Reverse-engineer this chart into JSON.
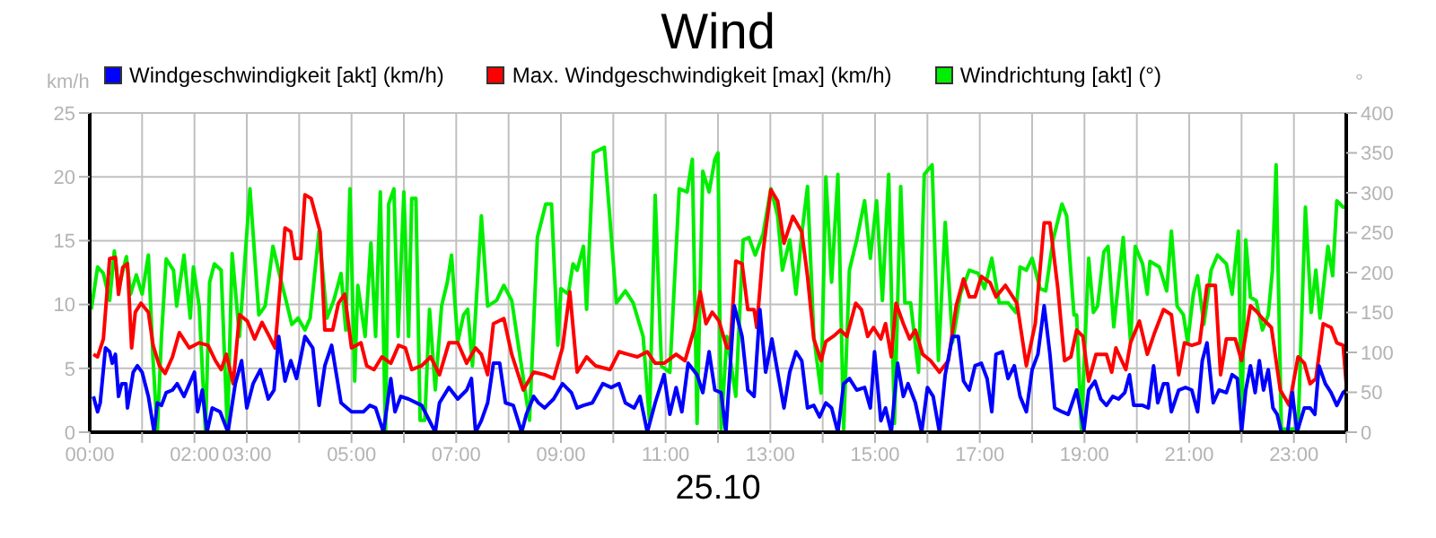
{
  "chart_data": {
    "type": "line",
    "title": "Wind",
    "xlabel": "25.10",
    "ylabel": "km/h",
    "y2label": "°",
    "xlim": [
      0,
      24
    ],
    "xticks": [
      {
        "value": 0,
        "label": "00:00"
      },
      {
        "value": 1,
        "label": null
      },
      {
        "value": 2,
        "label": "02:00"
      },
      {
        "value": 3,
        "label": "03:00"
      },
      {
        "value": 4,
        "label": null
      },
      {
        "value": 5,
        "label": "05:00"
      },
      {
        "value": 6,
        "label": null
      },
      {
        "value": 7,
        "label": "07:00"
      },
      {
        "value": 8,
        "label": null
      },
      {
        "value": 9,
        "label": "09:00"
      },
      {
        "value": 10,
        "label": null
      },
      {
        "value": 11,
        "label": "11:00"
      },
      {
        "value": 12,
        "label": null
      },
      {
        "value": 13,
        "label": "13:00"
      },
      {
        "value": 14,
        "label": null
      },
      {
        "value": 15,
        "label": "15:00"
      },
      {
        "value": 16,
        "label": null
      },
      {
        "value": 17,
        "label": "17:00"
      },
      {
        "value": 18,
        "label": null
      },
      {
        "value": 19,
        "label": "19:00"
      },
      {
        "value": 20,
        "label": null
      },
      {
        "value": 21,
        "label": "21:00"
      },
      {
        "value": 22,
        "label": null
      },
      {
        "value": 23,
        "label": "23:00"
      },
      {
        "value": 24,
        "label": null
      }
    ],
    "ylim": [
      0,
      25
    ],
    "yticks": [
      0,
      5,
      10,
      15,
      20,
      25
    ],
    "y2lim": [
      0,
      400
    ],
    "y2ticks": [
      0,
      50,
      100,
      150,
      200,
      250,
      300,
      350,
      400
    ],
    "grid": true,
    "legend": "top",
    "marker": "none",
    "line_style": "solid",
    "series": [
      {
        "name": "Windgeschwindigkeit [akt] (km/h)",
        "color": "#0000ff",
        "x": [
          0.07,
          0.15,
          0.2,
          0.3,
          0.38,
          0.43,
          0.49,
          0.55,
          0.61,
          0.69,
          0.72,
          0.83,
          0.91,
          1.0,
          1.12,
          1.23,
          1.29,
          1.37,
          1.46,
          1.58,
          1.67,
          1.8,
          2.0,
          2.06,
          2.15,
          2.24,
          2.34,
          2.49,
          2.64,
          2.78,
          2.9,
          3.0,
          3.12,
          3.26,
          3.41,
          3.52,
          3.61,
          3.73,
          3.84,
          3.95,
          4.11,
          4.26,
          4.38,
          4.49,
          4.62,
          4.8,
          5.0,
          5.23,
          5.35,
          5.46,
          5.61,
          5.75,
          5.83,
          5.94,
          6.09,
          6.34,
          6.6,
          6.68,
          6.86,
          7.03,
          7.2,
          7.29,
          7.37,
          7.48,
          7.6,
          7.71,
          7.83,
          7.94,
          8.09,
          8.25,
          8.34,
          8.48,
          8.57,
          8.69,
          8.86,
          9.03,
          9.2,
          9.31,
          9.43,
          9.6,
          9.8,
          9.96,
          10.11,
          10.23,
          10.4,
          10.51,
          10.65,
          10.8,
          10.97,
          11.08,
          11.2,
          11.31,
          11.43,
          11.6,
          11.71,
          11.83,
          11.94,
          12.06,
          12.15,
          12.31,
          12.46,
          12.57,
          12.69,
          12.8,
          12.91,
          13.03,
          13.14,
          13.26,
          13.37,
          13.49,
          13.6,
          13.71,
          13.83,
          13.94,
          14.06,
          14.17,
          14.29,
          14.4,
          14.51,
          14.65,
          14.8,
          14.91,
          14.99,
          15.11,
          15.2,
          15.31,
          15.43,
          15.54,
          15.63,
          15.77,
          15.89,
          16.0,
          16.11,
          16.23,
          16.34,
          16.48,
          16.59,
          16.69,
          16.8,
          16.91,
          17.03,
          17.14,
          17.23,
          17.31,
          17.43,
          17.54,
          17.66,
          17.77,
          17.89,
          18.0,
          18.11,
          18.23,
          18.34,
          18.43,
          18.57,
          18.69,
          18.85,
          18.99,
          19.08,
          19.2,
          19.31,
          19.42,
          19.54,
          19.65,
          19.77,
          19.86,
          19.94,
          20.11,
          20.22,
          20.32,
          20.4,
          20.51,
          20.59,
          20.66,
          20.8,
          20.93,
          21.05,
          21.16,
          21.25,
          21.34,
          21.46,
          21.57,
          21.71,
          21.82,
          21.92,
          22.0,
          22.08,
          22.17,
          22.26,
          22.34,
          22.42,
          22.51,
          22.6,
          22.68,
          22.76,
          22.88,
          22.97,
          23.06,
          23.2,
          23.31,
          23.4,
          23.48,
          23.6,
          23.71,
          23.82,
          23.94,
          24.0
        ],
        "values": [
          2.8,
          1.6,
          2.3,
          6.6,
          6.3,
          5.4,
          6.1,
          2.8,
          3.8,
          3.8,
          1.9,
          4.7,
          5.2,
          4.7,
          2.8,
          0,
          2.3,
          2.1,
          3.1,
          3.3,
          3.8,
          2.8,
          4.7,
          1.6,
          3.3,
          0,
          1.9,
          1.6,
          0,
          3.8,
          5.6,
          1.9,
          3.8,
          4.9,
          2.6,
          3.3,
          7.5,
          4.0,
          5.6,
          4.2,
          7.5,
          6.6,
          2.1,
          5.2,
          6.8,
          2.3,
          1.6,
          1.6,
          2.1,
          1.9,
          0,
          4.2,
          1.6,
          2.8,
          2.6,
          2.1,
          0,
          2.3,
          3.5,
          2.6,
          3.3,
          4.2,
          0,
          0.9,
          2.3,
          5.4,
          5.4,
          2.3,
          2.1,
          0,
          1.4,
          2.8,
          2.3,
          1.9,
          2.6,
          3.8,
          3.1,
          1.9,
          2.1,
          2.3,
          3.8,
          3.5,
          3.8,
          2.3,
          1.9,
          2.8,
          0,
          2.3,
          4.5,
          1.4,
          3.5,
          1.6,
          5.4,
          4.5,
          3.1,
          6.3,
          3.3,
          3.1,
          0,
          9.9,
          7.5,
          3.3,
          2.8,
          9.6,
          4.7,
          7.3,
          4.7,
          1.9,
          4.7,
          6.3,
          5.6,
          1.9,
          2.1,
          1.2,
          2.3,
          1.9,
          0,
          3.8,
          4.2,
          3.3,
          3.5,
          1.9,
          6.3,
          0.9,
          1.9,
          0,
          5.4,
          2.8,
          3.8,
          2.3,
          0,
          3.5,
          2.8,
          0,
          4.5,
          7.5,
          7.5,
          4.0,
          3.3,
          5.2,
          5.4,
          4.2,
          1.6,
          6.1,
          6.3,
          4.2,
          5.2,
          2.8,
          1.6,
          4.9,
          6.1,
          9.9,
          6.1,
          1.9,
          1.6,
          1.4,
          3.3,
          0.2,
          3.3,
          4.0,
          2.6,
          2.1,
          2.8,
          2.6,
          3.1,
          4.5,
          2.1,
          2.1,
          1.9,
          5.2,
          2.3,
          3.8,
          3.8,
          1.6,
          3.3,
          3.5,
          3.3,
          1.6,
          5.6,
          7.0,
          2.3,
          3.3,
          3.1,
          4.5,
          4.2,
          0,
          3.3,
          5.2,
          3.1,
          5.6,
          3.3,
          4.9,
          1.9,
          1.4,
          0,
          0,
          3.1,
          0,
          1.9,
          1.9,
          1.4,
          5.2,
          3.8,
          3.1,
          2.1,
          3.1,
          3.3
        ]
      },
      {
        "name": "Max. Windgeschwindigkeit [max] (km/h)",
        "color": "#ff0000",
        "x": [
          0.07,
          0.15,
          0.26,
          0.38,
          0.49,
          0.55,
          0.63,
          0.72,
          0.8,
          0.87,
          0.98,
          1.12,
          1.21,
          1.33,
          1.44,
          1.58,
          1.71,
          1.9,
          2.09,
          2.26,
          2.4,
          2.51,
          2.61,
          2.74,
          2.86,
          3.01,
          3.15,
          3.29,
          3.43,
          3.54,
          3.73,
          3.84,
          3.92,
          4.03,
          4.11,
          4.23,
          4.4,
          4.49,
          4.64,
          4.75,
          4.87,
          5.0,
          5.18,
          5.29,
          5.43,
          5.58,
          5.75,
          5.9,
          6.03,
          6.15,
          6.34,
          6.51,
          6.68,
          6.86,
          7.03,
          7.2,
          7.37,
          7.48,
          7.6,
          7.71,
          7.91,
          8.06,
          8.28,
          8.48,
          8.69,
          8.86,
          9.03,
          9.17,
          9.31,
          9.49,
          9.66,
          9.94,
          10.11,
          10.28,
          10.46,
          10.65,
          10.8,
          10.97,
          11.2,
          11.37,
          11.54,
          11.66,
          11.77,
          11.89,
          12.02,
          12.17,
          12.23,
          12.34,
          12.46,
          12.57,
          12.69,
          12.74,
          12.86,
          13.01,
          13.14,
          13.26,
          13.43,
          13.6,
          13.71,
          13.83,
          13.97,
          14.06,
          14.23,
          14.34,
          14.46,
          14.63,
          14.74,
          14.86,
          14.97,
          15.11,
          15.2,
          15.31,
          15.4,
          15.54,
          15.66,
          15.77,
          15.91,
          16.06,
          16.23,
          16.4,
          16.55,
          16.69,
          16.8,
          16.91,
          17.03,
          17.2,
          17.31,
          17.49,
          17.71,
          17.89,
          18.06,
          18.23,
          18.34,
          18.49,
          18.62,
          18.74,
          18.85,
          18.97,
          19.08,
          19.22,
          19.42,
          19.52,
          19.6,
          19.79,
          19.88,
          20.05,
          20.2,
          20.34,
          20.51,
          20.66,
          20.8,
          20.91,
          21.05,
          21.2,
          21.34,
          21.5,
          21.6,
          21.71,
          21.88,
          22.0,
          22.17,
          22.3,
          22.4,
          22.57,
          22.74,
          22.91,
          23.08,
          23.2,
          23.31,
          23.42,
          23.56,
          23.71,
          23.82,
          23.94,
          24.0
        ],
        "values": [
          6.1,
          5.9,
          7.3,
          13.6,
          13.7,
          10.8,
          12.9,
          13.2,
          6.6,
          9.4,
          10.1,
          9.4,
          6.8,
          5.2,
          4.6,
          5.9,
          7.8,
          6.6,
          7.0,
          6.8,
          5.6,
          4.9,
          6.1,
          3.8,
          9.2,
          8.7,
          7.3,
          8.6,
          7.5,
          6.6,
          16.0,
          15.7,
          13.6,
          13.6,
          18.6,
          18.3,
          15.7,
          8.0,
          8.0,
          10.1,
          10.8,
          6.6,
          7.0,
          5.2,
          4.9,
          5.9,
          5.4,
          6.8,
          6.6,
          4.9,
          5.2,
          5.9,
          4.5,
          7.0,
          7.0,
          5.4,
          6.6,
          6.1,
          4.5,
          8.5,
          8.9,
          6.1,
          3.3,
          4.7,
          4.5,
          4.2,
          6.6,
          11.0,
          4.7,
          5.9,
          5.2,
          4.9,
          6.3,
          6.1,
          5.9,
          6.3,
          5.4,
          5.4,
          6.1,
          5.6,
          8.0,
          11.0,
          8.5,
          9.4,
          8.7,
          6.6,
          6.6,
          13.4,
          13.2,
          9.6,
          9.6,
          8.2,
          14.1,
          19.0,
          18.1,
          14.8,
          16.9,
          15.7,
          12.2,
          7.3,
          5.6,
          7.1,
          7.6,
          8.0,
          7.5,
          10.1,
          9.6,
          7.5,
          8.2,
          7.3,
          8.5,
          5.9,
          10.1,
          8.5,
          7.3,
          8.0,
          6.1,
          5.6,
          4.7,
          5.6,
          9.9,
          12.0,
          10.6,
          10.6,
          12.2,
          11.7,
          10.6,
          11.5,
          10.1,
          5.2,
          8.5,
          16.4,
          16.4,
          11.3,
          5.6,
          5.9,
          8.0,
          7.5,
          4.0,
          6.1,
          6.1,
          4.7,
          6.6,
          4.9,
          7.0,
          8.7,
          6.1,
          7.8,
          9.6,
          9.2,
          4.5,
          7.0,
          6.8,
          7.0,
          11.5,
          11.5,
          4.5,
          7.3,
          7.3,
          5.6,
          9.9,
          9.4,
          8.9,
          8.2,
          3.3,
          2.1,
          5.9,
          5.4,
          3.8,
          4.2,
          8.5,
          8.2,
          7.0,
          6.8,
          3.8
        ]
      },
      {
        "name": "Windrichtung [akt] (°)",
        "color": "#00ee00",
        "axis": "y2",
        "x": [
          0.03,
          0.15,
          0.26,
          0.38,
          0.47,
          0.55,
          0.7,
          0.78,
          0.89,
          1.0,
          1.12,
          1.21,
          1.29,
          1.37,
          1.46,
          1.6,
          1.66,
          1.8,
          1.92,
          1.98,
          2.09,
          2.21,
          2.29,
          2.38,
          2.51,
          2.63,
          2.72,
          2.86,
          3.06,
          3.23,
          3.35,
          3.5,
          3.63,
          3.75,
          3.86,
          3.98,
          4.11,
          4.21,
          4.38,
          4.53,
          4.66,
          4.8,
          4.89,
          4.97,
          5.06,
          5.12,
          5.26,
          5.37,
          5.46,
          5.55,
          5.65,
          5.71,
          5.81,
          5.89,
          6.0,
          6.09,
          6.15,
          6.23,
          6.31,
          6.4,
          6.49,
          6.6,
          6.72,
          6.83,
          6.91,
          7.03,
          7.14,
          7.22,
          7.31,
          7.48,
          7.6,
          7.77,
          7.91,
          8.06,
          8.23,
          8.4,
          8.55,
          8.71,
          8.82,
          8.94,
          9.0,
          9.14,
          9.23,
          9.31,
          9.43,
          9.49,
          9.62,
          9.83,
          10.06,
          10.23,
          10.38,
          10.57,
          10.69,
          10.8,
          10.92,
          11.08,
          11.26,
          11.41,
          11.51,
          11.6,
          11.71,
          11.83,
          11.94,
          12.0,
          12.06,
          12.17,
          12.34,
          12.48,
          12.59,
          12.71,
          12.86,
          13.01,
          13.14,
          13.23,
          13.37,
          13.49,
          13.6,
          13.71,
          13.83,
          13.97,
          14.06,
          14.17,
          14.29,
          14.4,
          14.51,
          14.65,
          14.8,
          14.91,
          15.03,
          15.14,
          15.26,
          15.37,
          15.49,
          15.57,
          15.68,
          15.83,
          15.94,
          16.09,
          16.21,
          16.34,
          16.48,
          16.63,
          16.8,
          16.97,
          17.09,
          17.23,
          17.37,
          17.54,
          17.69,
          17.77,
          17.89,
          18.0,
          18.15,
          18.26,
          18.4,
          18.57,
          18.66,
          18.8,
          18.85,
          18.94,
          19.08,
          19.17,
          19.25,
          19.37,
          19.45,
          19.56,
          19.74,
          19.88,
          19.97,
          20.11,
          20.2,
          20.25,
          20.43,
          20.57,
          20.66,
          20.77,
          20.89,
          20.97,
          21.08,
          21.16,
          21.28,
          21.42,
          21.54,
          21.71,
          21.82,
          21.94,
          22.0,
          22.08,
          22.17,
          22.28,
          22.4,
          22.51,
          22.59,
          22.66,
          22.76,
          22.91,
          23.08,
          23.22,
          23.33,
          23.42,
          23.5,
          23.65,
          23.74,
          23.82,
          23.94,
          24.0
        ],
        "values": [
          154,
          207,
          199,
          165,
          227,
          180,
          220,
          173,
          197,
          173,
          222,
          90,
          0,
          120,
          217,
          203,
          158,
          222,
          143,
          207,
          158,
          0,
          188,
          211,
          203,
          0,
          224,
          120,
          305,
          147,
          158,
          233,
          196,
          165,
          135,
          143,
          128,
          143,
          252,
          143,
          165,
          199,
          128,
          305,
          64,
          184,
          120,
          237,
          120,
          301,
          0,
          286,
          305,
          120,
          301,
          120,
          293,
          293,
          15,
          15,
          154,
          53,
          158,
          188,
          222,
          113,
          147,
          154,
          83,
          271,
          158,
          165,
          184,
          165,
          90,
          15,
          244,
          286,
          286,
          109,
          180,
          173,
          211,
          203,
          233,
          154,
          350,
          357,
          162,
          177,
          162,
          120,
          15,
          297,
          83,
          75,
          305,
          301,
          342,
          11,
          327,
          301,
          342,
          350,
          4,
          120,
          45,
          241,
          244,
          222,
          248,
          305,
          271,
          203,
          241,
          173,
          248,
          308,
          120,
          49,
          320,
          188,
          323,
          4,
          203,
          241,
          290,
          218,
          290,
          165,
          323,
          11,
          308,
          162,
          162,
          75,
          323,
          335,
          90,
          263,
          113,
          173,
          203,
          199,
          180,
          218,
          162,
          162,
          150,
          207,
          203,
          218,
          180,
          177,
          241,
          286,
          271,
          147,
          147,
          4,
          218,
          150,
          158,
          226,
          233,
          132,
          244,
          113,
          233,
          211,
          173,
          214,
          207,
          177,
          252,
          158,
          147,
          113,
          173,
          196,
          135,
          203,
          222,
          211,
          173,
          252,
          4,
          241,
          169,
          165,
          128,
          147,
          203,
          335,
          4,
          4,
          4,
          282,
          150,
          203,
          143,
          233,
          196,
          290,
          282,
          282
        ]
      }
    ]
  }
}
